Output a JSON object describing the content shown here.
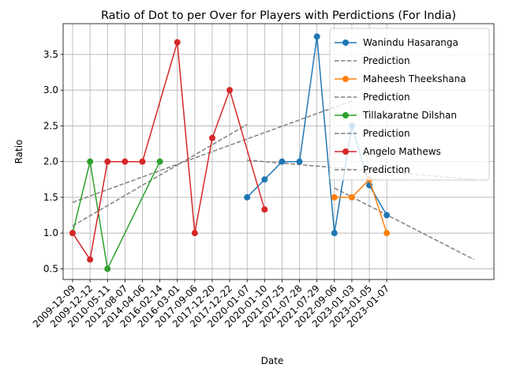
{
  "chart_data": {
    "type": "line",
    "title": "Ratio of Dot to per Over for Players with Perdictions (For India)",
    "xlabel": "Date",
    "ylabel": "Ratio",
    "ylim": [
      0.35,
      3.93
    ],
    "y_ticks": [
      "0.5",
      "1.0",
      "1.5",
      "2.0",
      "2.5",
      "3.0",
      "3.5"
    ],
    "x_ticks": [
      "2009-12-09",
      "2009-12-12",
      "2010-05-11",
      "2012-08-07",
      "2014-04-06",
      "2016-02-14",
      "2016-03-01",
      "2017-09-06",
      "2017-12-20",
      "2017-12-22",
      "2020-01-07",
      "2020-01-10",
      "2021-07-25",
      "2021-07-28",
      "2021-07-29",
      "2022-09-06",
      "2023-01-03",
      "2023-01-05",
      "2023-01-07"
    ],
    "grid": true,
    "legend_position": "top-right",
    "colors": {
      "wanindu": "#1f77b4",
      "maheesh": "#ff7f0e",
      "tillakaratne": "#2ca02c",
      "angelo": "#d62728",
      "prediction": "#808080"
    },
    "series": [
      {
        "name": "Wanindu Hasaranga",
        "color": "#1f77b4",
        "points": [
          [
            10,
            1.5
          ],
          [
            11,
            1.75
          ],
          [
            12,
            2.0
          ],
          [
            13,
            2.0
          ],
          [
            14,
            3.75
          ],
          [
            15,
            1.0
          ],
          [
            16,
            2.5
          ],
          [
            17,
            1.67
          ],
          [
            18,
            1.25
          ]
        ],
        "prediction": {
          "label": "Prediction",
          "from": [
            10,
            2.02
          ],
          "to": [
            23,
            1.75
          ]
        }
      },
      {
        "name": "Maheesh Theekshana",
        "color": "#ff7f0e",
        "points": [
          [
            15,
            1.5
          ],
          [
            16,
            1.5
          ],
          [
            17,
            1.75
          ],
          [
            18,
            1.0
          ]
        ],
        "prediction": {
          "label": "Prediction",
          "from": [
            15,
            1.63
          ],
          "to": [
            23,
            0.63
          ]
        }
      },
      {
        "name": "Tillakaratne Dilshan",
        "color": "#2ca02c",
        "points": [
          [
            0,
            1.0
          ],
          [
            1,
            2.0
          ],
          [
            2,
            0.5
          ],
          [
            5,
            2.0
          ]
        ],
        "prediction": {
          "label": "Prediction",
          "from": [
            0,
            1.1
          ],
          "to": [
            10,
            2.52
          ]
        }
      },
      {
        "name": "Angelo Mathews",
        "color": "#d62728",
        "points": [
          [
            0,
            1.0
          ],
          [
            1,
            0.63
          ],
          [
            2,
            2.0
          ],
          [
            3,
            2.0
          ],
          [
            4,
            2.0
          ],
          [
            6,
            3.67
          ],
          [
            7,
            1.0
          ],
          [
            8,
            2.33
          ],
          [
            9,
            3.0
          ],
          [
            11,
            1.33
          ]
        ],
        "prediction": {
          "label": "Prediction",
          "from": [
            0,
            1.43
          ],
          "to": [
            16,
            2.85
          ]
        }
      }
    ]
  }
}
